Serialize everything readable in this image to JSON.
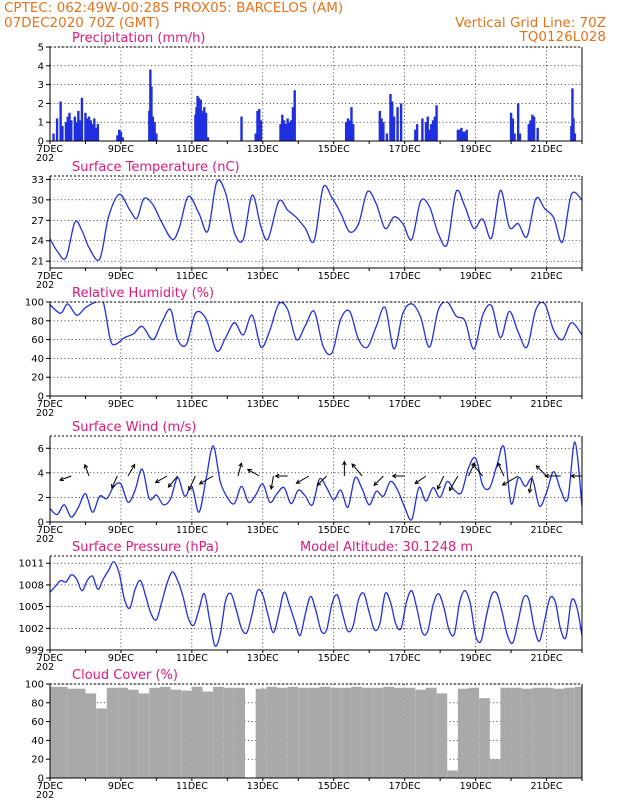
{
  "header": {
    "line1_left": "CPTEC:   062:49W-00:28S   PROX05: BARCELOS (AM)",
    "line2_left": "07DEC2020 70Z (GMT)",
    "line2_right": "Vertical Grid Line: 70Z",
    "line3_right": "TQ0126L028"
  },
  "colors": {
    "header": "#e8731c",
    "panel_title": "#e0187f",
    "line": "#2030e0",
    "bar": "#1f2fe0",
    "cloud": "#a9a9a9"
  },
  "x_axis": {
    "tick_labels": [
      "7DEC",
      "9DEC",
      "11DEC",
      "13DEC",
      "15DEC",
      "17DEC",
      "19DEC",
      "21DEC"
    ],
    "tick_days": [
      7,
      9,
      11,
      13,
      15,
      17,
      19,
      21
    ],
    "start_day": 7,
    "end_day": 22,
    "year_fragment": "202"
  },
  "chart_data": [
    {
      "type": "bar",
      "title": "Precipitation (mm/h)",
      "ylim": [
        0,
        5
      ],
      "yticks": [
        0,
        1,
        2,
        3,
        4,
        5
      ],
      "x": [
        7.1,
        7.2,
        7.3,
        7.35,
        7.45,
        7.5,
        7.55,
        7.6,
        7.7,
        7.75,
        7.8,
        7.85,
        7.9,
        8.0,
        8.05,
        8.1,
        8.15,
        8.2,
        8.25,
        8.3,
        8.35,
        8.9,
        8.95,
        9.0,
        9.05,
        9.8,
        9.83,
        9.86,
        9.9,
        9.95,
        10.0,
        11.1,
        11.13,
        11.16,
        11.2,
        11.25,
        11.3,
        11.35,
        11.4,
        11.45,
        12.4,
        12.8,
        12.85,
        12.9,
        12.95,
        13.5,
        13.55,
        13.6,
        13.65,
        13.7,
        13.75,
        13.8,
        13.85,
        13.9,
        15.35,
        15.4,
        15.45,
        15.5,
        15.55,
        16.3,
        16.35,
        16.4,
        16.5,
        16.6,
        16.65,
        16.7,
        16.8,
        16.9,
        17.3,
        17.35,
        17.5,
        17.6,
        17.65,
        17.7,
        17.75,
        17.8,
        17.85,
        17.9,
        18.5,
        18.55,
        18.6,
        18.65,
        18.7,
        18.75,
        20.0,
        20.05,
        20.1,
        20.2,
        20.25,
        20.5,
        20.55,
        20.6,
        20.65,
        20.75,
        21.7,
        21.73,
        21.76,
        21.8
      ],
      "values": [
        0.4,
        1.2,
        2.1,
        0.8,
        1.0,
        1.3,
        1.5,
        1.1,
        1.3,
        1.0,
        1.6,
        1.1,
        2.3,
        1.5,
        1.2,
        1.3,
        1.1,
        0.9,
        1.2,
        0.7,
        0.9,
        0.3,
        0.6,
        0.5,
        0.2,
        1.6,
        3.8,
        2.9,
        1.3,
        1.0,
        0.4,
        1.4,
        1.8,
        2.4,
        2.3,
        2.2,
        1.6,
        1.8,
        1.5,
        0.2,
        1.3,
        0.4,
        1.6,
        1.7,
        1.1,
        0.9,
        1.4,
        1.1,
        0.9,
        1.2,
        1.0,
        1.1,
        1.8,
        2.7,
        1.0,
        1.2,
        1.1,
        1.8,
        0.9,
        1.6,
        1.2,
        1.0,
        0.4,
        2.5,
        2.1,
        1.3,
        1.8,
        2.0,
        0.6,
        0.9,
        1.2,
        1.0,
        1.3,
        0.6,
        0.9,
        1.1,
        1.3,
        1.9,
        0.6,
        0.6,
        0.7,
        0.5,
        0.5,
        0.6,
        1.5,
        1.2,
        0.4,
        2.0,
        0.4,
        0.9,
        1.1,
        1.4,
        1.3,
        0.7,
        0.8,
        2.8,
        1.2,
        0.4
      ]
    },
    {
      "type": "line",
      "title": "Surface Temperature (nC)",
      "ylim": [
        20,
        33.5
      ],
      "yticks": [
        21,
        24,
        27,
        30,
        33
      ],
      "x": [
        7.0,
        7.2,
        7.45,
        7.7,
        7.9,
        8.1,
        8.4,
        8.65,
        8.95,
        9.25,
        9.45,
        9.65,
        9.9,
        10.15,
        10.45,
        10.65,
        10.9,
        11.2,
        11.45,
        11.7,
        11.95,
        12.2,
        12.45,
        12.7,
        12.95,
        13.15,
        13.45,
        13.7,
        13.95,
        14.2,
        14.45,
        14.7,
        14.95,
        15.2,
        15.45,
        15.7,
        15.95,
        16.2,
        16.45,
        16.7,
        16.95,
        17.2,
        17.45,
        17.7,
        17.95,
        18.2,
        18.45,
        18.7,
        18.95,
        19.2,
        19.45,
        19.7,
        19.95,
        20.2,
        20.45,
        20.7,
        20.95,
        21.2,
        21.45,
        21.7,
        22.0
      ],
      "values": [
        24.3,
        22.5,
        21.5,
        26.7,
        25.5,
        23.0,
        21.3,
        27.5,
        30.8,
        28.5,
        27.3,
        30.2,
        29.3,
        26.7,
        24.2,
        26.0,
        30.5,
        28.0,
        25.4,
        32.6,
        31.0,
        25.2,
        24.2,
        30.7,
        26.0,
        24.3,
        29.8,
        28.5,
        27.4,
        25.8,
        24.0,
        31.8,
        30.3,
        28.0,
        25.3,
        26.5,
        31.2,
        29.4,
        25.8,
        27.5,
        26.5,
        24.2,
        29.8,
        29.0,
        25.0,
        23.5,
        31.2,
        29.0,
        25.8,
        27.2,
        24.4,
        31.4,
        26.0,
        26.5,
        24.6,
        30.2,
        28.7,
        27.4,
        23.8,
        30.8,
        30.0
      ]
    },
    {
      "type": "line",
      "title": "Relative Humidity (%)",
      "ylim": [
        0,
        100
      ],
      "yticks": [
        0,
        20,
        40,
        60,
        80,
        100
      ],
      "x": [
        7.0,
        7.3,
        7.5,
        7.75,
        8.0,
        8.3,
        8.5,
        8.7,
        8.85,
        9.1,
        9.35,
        9.6,
        9.9,
        10.15,
        10.4,
        10.6,
        10.85,
        11.1,
        11.4,
        11.7,
        11.95,
        12.2,
        12.45,
        12.7,
        12.95,
        13.2,
        13.45,
        13.7,
        13.95,
        14.2,
        14.45,
        14.7,
        14.95,
        15.2,
        15.45,
        15.7,
        15.95,
        16.2,
        16.45,
        16.7,
        16.95,
        17.2,
        17.45,
        17.7,
        17.95,
        18.2,
        18.45,
        18.7,
        18.95,
        19.2,
        19.45,
        19.7,
        19.95,
        20.2,
        20.45,
        20.7,
        20.95,
        21.2,
        21.45,
        21.7,
        22.0
      ],
      "values": [
        97,
        88,
        98,
        86,
        94,
        100,
        100,
        60,
        55,
        62,
        66,
        74,
        60,
        78,
        92,
        60,
        55,
        88,
        82,
        48,
        62,
        78,
        65,
        86,
        52,
        70,
        98,
        92,
        60,
        75,
        90,
        53,
        46,
        82,
        90,
        60,
        52,
        74,
        94,
        50,
        88,
        98,
        84,
        52,
        92,
        100,
        85,
        80,
        50,
        86,
        96,
        62,
        90,
        68,
        52,
        92,
        98,
        70,
        60,
        78,
        65
      ]
    },
    {
      "type": "line",
      "title": "Surface Wind (m/s)",
      "ylim": [
        0,
        7
      ],
      "yticks": [
        0,
        2,
        4,
        6
      ],
      "x": [
        7.0,
        7.2,
        7.4,
        7.6,
        7.8,
        8.0,
        8.2,
        8.4,
        8.6,
        8.8,
        9.0,
        9.2,
        9.4,
        9.6,
        9.8,
        10.0,
        10.2,
        10.4,
        10.6,
        10.8,
        11.0,
        11.2,
        11.4,
        11.6,
        11.8,
        12.0,
        12.2,
        12.4,
        12.6,
        12.8,
        13.0,
        13.2,
        13.4,
        13.6,
        13.8,
        14.0,
        14.2,
        14.4,
        14.6,
        14.8,
        15.0,
        15.2,
        15.4,
        15.6,
        15.8,
        16.0,
        16.2,
        16.4,
        16.6,
        16.8,
        17.0,
        17.2,
        17.4,
        17.6,
        17.8,
        18.0,
        18.2,
        18.4,
        18.6,
        18.8,
        19.0,
        19.2,
        19.4,
        19.6,
        19.8,
        20.0,
        20.2,
        20.4,
        20.6,
        20.8,
        21.0,
        21.2,
        21.4,
        21.6,
        21.8,
        22.0
      ],
      "values": [
        1.1,
        0.6,
        1.4,
        0.4,
        1.2,
        2.3,
        0.8,
        2.1,
        1.9,
        2.9,
        3.1,
        1.6,
        2.6,
        4.3,
        1.9,
        2.2,
        1.4,
        1.9,
        3.6,
        2.1,
        2.9,
        0.8,
        3.5,
        6.2,
        3.3,
        2.0,
        1.5,
        2.9,
        1.6,
        2.2,
        3.1,
        1.6,
        2.3,
        2.8,
        1.5,
        2.6,
        2.1,
        1.4,
        3.5,
        2.8,
        1.8,
        2.6,
        1.2,
        3.6,
        2.7,
        1.4,
        2.5,
        2.1,
        3.3,
        2.6,
        1.2,
        0.2,
        2.8,
        1.7,
        2.8,
        2.0,
        3.3,
        2.6,
        2.4,
        4.4,
        5.2,
        3.0,
        2.8,
        4.6,
        6.1,
        1.5,
        3.6,
        2.9,
        3.5,
        1.3,
        2.4,
        4.1,
        2.6,
        1.9,
        6.5,
        1.3
      ]
    },
    {
      "type": "line",
      "title": "Surface Pressure (hPa)",
      "annotation": "Model Altitude: 30.1248 m",
      "ylim": [
        999,
        1012
      ],
      "yticks": [
        999,
        1002,
        1005,
        1008,
        1011
      ],
      "tick_labels": [
        "999",
        "1002",
        "1005",
        "1008",
        "1011"
      ],
      "x": [
        7.0,
        7.15,
        7.3,
        7.45,
        7.6,
        7.75,
        7.9,
        8.05,
        8.2,
        8.35,
        8.5,
        8.65,
        8.8,
        8.95,
        9.1,
        9.25,
        9.4,
        9.55,
        9.7,
        9.85,
        10.0,
        10.15,
        10.3,
        10.45,
        10.6,
        10.75,
        10.9,
        11.05,
        11.2,
        11.35,
        11.5,
        11.65,
        11.8,
        11.95,
        12.1,
        12.25,
        12.4,
        12.55,
        12.7,
        12.85,
        13.0,
        13.15,
        13.3,
        13.45,
        13.6,
        13.75,
        13.9,
        14.05,
        14.2,
        14.35,
        14.5,
        14.65,
        14.8,
        14.95,
        15.1,
        15.25,
        15.4,
        15.55,
        15.7,
        15.85,
        16.0,
        16.15,
        16.3,
        16.45,
        16.6,
        16.75,
        16.9,
        17.05,
        17.2,
        17.35,
        17.5,
        17.65,
        17.8,
        17.95,
        18.1,
        18.25,
        18.4,
        18.55,
        18.7,
        18.85,
        19.0,
        19.15,
        19.3,
        19.45,
        19.6,
        19.75,
        19.9,
        20.05,
        20.2,
        20.35,
        20.5,
        20.65,
        20.8,
        20.95,
        21.1,
        21.25,
        21.4,
        21.55,
        21.7,
        21.85,
        22.0
      ],
      "values": [
        1007.0,
        1007.8,
        1008.6,
        1008.4,
        1009.4,
        1008.8,
        1007.2,
        1008.6,
        1009.2,
        1007.4,
        1008.8,
        1010.0,
        1011.2,
        1009.6,
        1006.0,
        1004.8,
        1007.4,
        1008.6,
        1006.4,
        1004.0,
        1003.2,
        1005.6,
        1008.2,
        1009.8,
        1008.6,
        1006.4,
        1003.4,
        1002.4,
        1004.6,
        1006.8,
        1003.2,
        999.6,
        1001.2,
        1005.8,
        1006.8,
        1004.6,
        1002.0,
        1001.4,
        1004.0,
        1007.2,
        1006.6,
        1003.8,
        1001.4,
        1004.0,
        1007.0,
        1005.2,
        1003.0,
        1001.0,
        1004.0,
        1006.4,
        1004.4,
        1001.6,
        1001.8,
        1005.4,
        1006.6,
        1004.0,
        1001.6,
        1002.4,
        1006.0,
        1006.8,
        1004.2,
        1001.8,
        1002.6,
        1006.8,
        1005.6,
        1002.6,
        1002.0,
        1005.6,
        1007.2,
        1004.6,
        1001.4,
        1001.6,
        1005.2,
        1006.8,
        1005.0,
        1001.8,
        1001.2,
        1005.6,
        1007.2,
        1005.4,
        1001.0,
        1000.2,
        1003.6,
        1006.6,
        1006.8,
        1004.2,
        1001.0,
        1000.0,
        1003.0,
        1006.2,
        1006.0,
        1002.2,
        1000.2,
        1003.2,
        1006.2,
        1005.6,
        1001.8,
        1000.8,
        1005.8,
        1005.0,
        1001.0
      ]
    },
    {
      "type": "bar",
      "title": "Cloud Cover (%)",
      "ylim": [
        0,
        100
      ],
      "yticks": [
        0,
        20,
        40,
        60,
        80,
        100
      ],
      "x": [
        7.0,
        7.5,
        8.0,
        8.3,
        8.6,
        8.9,
        9.2,
        9.5,
        9.8,
        10.1,
        10.4,
        10.7,
        11.0,
        11.3,
        11.6,
        11.9,
        12.2,
        12.5,
        12.8,
        13.1,
        13.4,
        13.7,
        14.0,
        14.3,
        14.6,
        14.9,
        15.2,
        15.5,
        15.8,
        16.1,
        16.4,
        16.7,
        17.0,
        17.3,
        17.6,
        17.9,
        18.2,
        18.5,
        18.8,
        19.1,
        19.4,
        19.7,
        20.0,
        20.3,
        20.6,
        20.9,
        21.2,
        21.5,
        21.8
      ],
      "values": [
        97,
        95,
        90,
        74,
        96,
        96,
        94,
        90,
        96,
        97,
        94,
        93,
        97,
        92,
        97,
        96,
        96,
        0,
        95,
        97,
        96,
        97,
        96,
        96,
        97,
        96,
        96,
        97,
        96,
        96,
        97,
        96,
        96,
        94,
        96,
        90,
        8,
        95,
        96,
        85,
        20,
        96,
        96,
        95,
        96,
        96,
        95,
        96,
        97
      ]
    }
  ],
  "wind_arrows": {
    "x": [
      7.6,
      8.1,
      8.9,
      9.2,
      10.3,
      10.6,
      11.1,
      11.6,
      12.3,
      12.9,
      13.3,
      13.7,
      14.3,
      14.8,
      15.3,
      15.8,
      16.4,
      17.0,
      17.6,
      18.1,
      18.5,
      18.8,
      19.2,
      19.8,
      20.2,
      20.6,
      21.0,
      21.4,
      22.0
    ],
    "angles": [
      200,
      110,
      245,
      60,
      210,
      230,
      245,
      210,
      75,
      150,
      260,
      180,
      210,
      225,
      90,
      130,
      225,
      180,
      215,
      245,
      240,
      65,
      130,
      115,
      210,
      260,
      135,
      180,
      180
    ],
    "mag": [
      0.5,
      0.5,
      0.6,
      0.6,
      0.6,
      0.7,
      0.8,
      0.8,
      0.6,
      0.6,
      0.6,
      0.5,
      0.7,
      0.6,
      0.7,
      0.8,
      0.6,
      0.5,
      0.6,
      0.7,
      0.9,
      0.7,
      0.8,
      0.7,
      1.0,
      0.9,
      0.7,
      0.8,
      0.4
    ]
  }
}
